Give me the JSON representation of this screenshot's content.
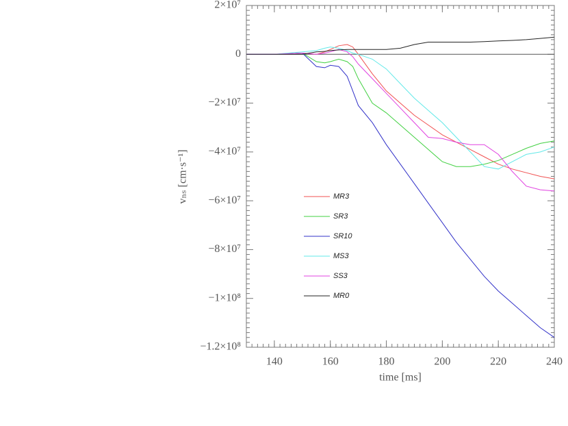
{
  "chart_data": {
    "type": "line",
    "x_label": "time [ms]",
    "y_label": "vₙₛ [cm·s⁻¹]",
    "xlim": [
      130,
      240
    ],
    "xticks": [
      140,
      160,
      180,
      200,
      220,
      240
    ],
    "ylim": [
      20000000.0,
      -120000000.0
    ],
    "yticks": [
      {
        "value": 20000000.0,
        "label": "2×10⁷"
      },
      0,
      {
        "value": -20000000.0,
        "label": "−2×10⁷"
      },
      {
        "value": -40000000.0,
        "label": "−4×10⁷"
      },
      {
        "value": -60000000.0,
        "label": "−6×10⁷"
      },
      {
        "value": -80000000.0,
        "label": "−8×10⁷"
      },
      {
        "value": -100000000.0,
        "label": "−1×10⁸"
      },
      {
        "value": -120000000.0,
        "label": "−1.2×10⁸"
      }
    ],
    "zero_line": true,
    "legend": "center-left",
    "x": [
      130,
      140,
      150,
      155,
      158,
      160,
      163,
      166,
      168,
      170,
      175,
      180,
      185,
      190,
      195,
      200,
      205,
      210,
      215,
      220,
      225,
      230,
      235,
      240
    ],
    "series": [
      {
        "name": "MR3",
        "color": "#f05050",
        "values": [
          0,
          0,
          500000.0,
          0,
          1000000.0,
          2000000.0,
          3500000.0,
          4000000.0,
          3000000.0,
          0,
          -8000000.0,
          -15000000.0,
          -20000000.0,
          -25000000.0,
          -29000000.0,
          -33000000.0,
          -36000000.0,
          -39000000.0,
          -42000000.0,
          -45000000.0,
          -47000000.0,
          -48500000.0,
          -50000000.0,
          -51000000.0
        ]
      },
      {
        "name": "SR3",
        "color": "#40d040",
        "values": [
          0,
          0,
          500000.0,
          -3000000.0,
          -3500000.0,
          -3000000.0,
          -2000000.0,
          -3000000.0,
          -5000000.0,
          -10000000.0,
          -20000000.0,
          -24000000.0,
          -29000000.0,
          -34000000.0,
          -39000000.0,
          -44000000.0,
          -46000000.0,
          -46000000.0,
          -45000000.0,
          -43500000.0,
          -41000000.0,
          -38500000.0,
          -36500000.0,
          -35500000.0
        ]
      },
      {
        "name": "SR10",
        "color": "#3030c8",
        "values": [
          0,
          0,
          500000.0,
          -5000000.0,
          -5500000.0,
          -4500000.0,
          -5000000.0,
          -9000000.0,
          -15000000.0,
          -21000000.0,
          -28000000.0,
          -37000000.0,
          -45000000.0,
          -53000000.0,
          -61000000.0,
          -69000000.0,
          -77000000.0,
          -84000000.0,
          -91000000.0,
          -97000000.0,
          -102000000.0,
          -107000000.0,
          -112000000.0,
          -116000000.0
        ]
      },
      {
        "name": "MS3",
        "color": "#60e8e8",
        "values": [
          0,
          0,
          1000000.0,
          1500000.0,
          2500000.0,
          3000000.0,
          2500000.0,
          1500000.0,
          500000.0,
          0,
          -2000000.0,
          -6000000.0,
          -12000000.0,
          -18000000.0,
          -23000000.0,
          -28000000.0,
          -34000000.0,
          -40000000.0,
          -46000000.0,
          -47000000.0,
          -44000000.0,
          -41000000.0,
          -40000000.0,
          -38000000.0
        ]
      },
      {
        "name": "SS3",
        "color": "#e040e0",
        "values": [
          0,
          0,
          500000.0,
          0,
          500000.0,
          1000000.0,
          2000000.0,
          1000000.0,
          -1000000.0,
          -4000000.0,
          -10000000.0,
          -16000000.0,
          -22000000.0,
          -28000000.0,
          -34000000.0,
          -34500000.0,
          -36000000.0,
          -37000000.0,
          -37000000.0,
          -41000000.0,
          -48000000.0,
          -54000000.0,
          -55500000.0,
          -56000000.0
        ]
      },
      {
        "name": "MR0",
        "color": "#222222",
        "values": [
          0,
          0,
          0,
          1000000.0,
          1200000.0,
          1500000.0,
          1800000.0,
          2000000.0,
          2000000.0,
          2000000.0,
          2000000.0,
          2000000.0,
          2500000.0,
          4000000.0,
          5000000.0,
          5000000.0,
          5000000.0,
          5000000.0,
          5200000.0,
          5500000.0,
          5700000.0,
          6000000.0,
          6500000.0,
          7000000.0
        ]
      }
    ]
  }
}
